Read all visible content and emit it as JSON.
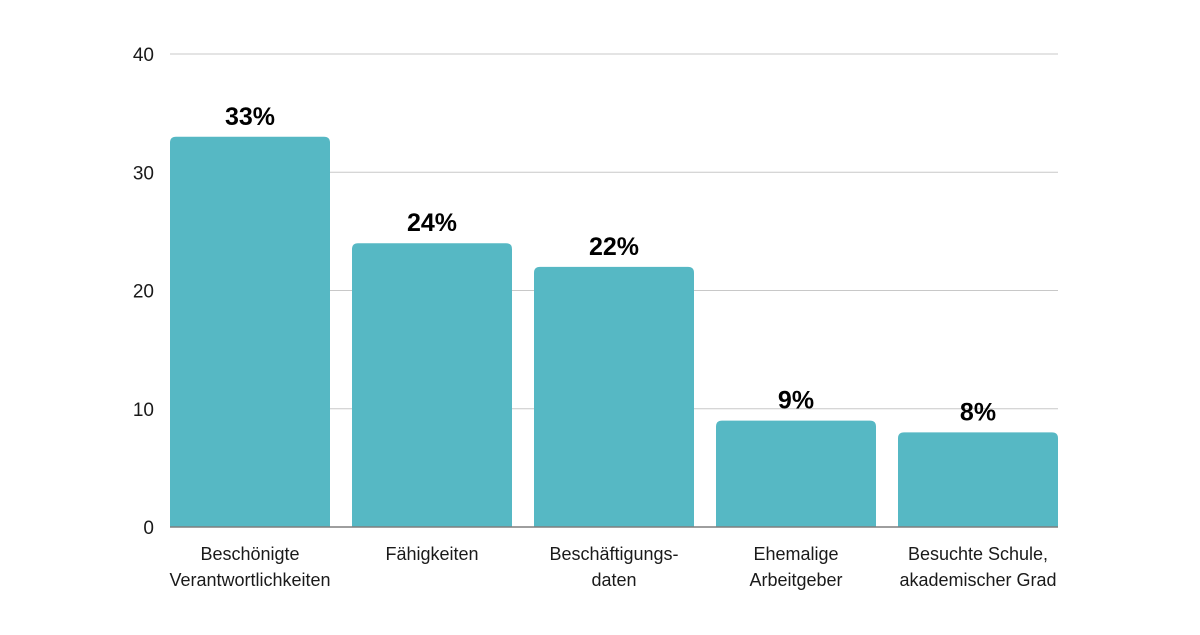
{
  "chart_data": {
    "type": "bar",
    "categories": [
      [
        "Beschönigte",
        "Verantwortlichkeiten"
      ],
      [
        "Fähigkeiten"
      ],
      [
        "Beschäftigungs-",
        "daten"
      ],
      [
        "Ehemalige",
        "Arbeitgeber"
      ],
      [
        "Besuchte Schule,",
        "akademischer Grad"
      ]
    ],
    "values": [
      33,
      24,
      22,
      9,
      8
    ],
    "data_labels": [
      "33%",
      "24%",
      "22%",
      "9%",
      "8%"
    ],
    "yticks": [
      0,
      10,
      20,
      30,
      40
    ],
    "ylim": [
      0,
      40
    ],
    "title": "",
    "xlabel": "",
    "ylabel": "",
    "grid": true,
    "legend": "none",
    "bar_color": "#56b8c4"
  }
}
